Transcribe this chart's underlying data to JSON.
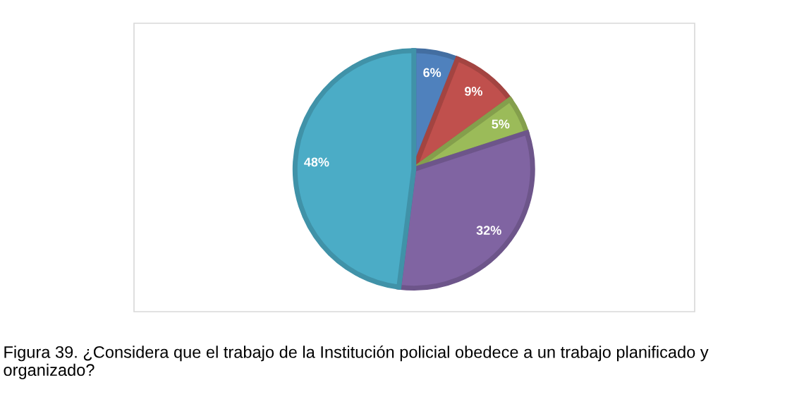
{
  "chart_data": {
    "type": "pie",
    "categories": [
      null,
      null,
      null,
      null,
      null
    ],
    "values": [
      6,
      9,
      5,
      32,
      48
    ],
    "colors": [
      "#4f81bd",
      "#c0504d",
      "#9bbb59",
      "#8064a2",
      "#4bacc6"
    ],
    "value_labels": [
      "6%",
      "9%",
      "5%",
      "32%",
      "48%"
    ],
    "annotations": [
      "Figura 39. ¿Considera que el trabajo de la Institución policial obedece a un trabajo planificado y organizado?"
    ]
  }
}
